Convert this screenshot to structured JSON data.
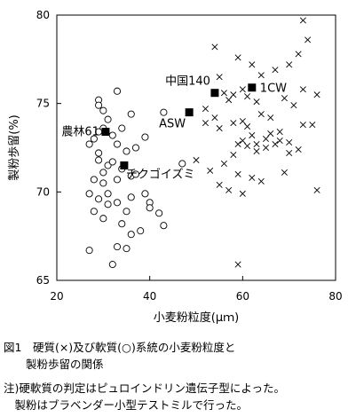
{
  "chart_data": {
    "type": "scatter",
    "xlabel": "小麦粉粒度(μｍ)",
    "ylabel": "製粉歩留(%)",
    "xlim": [
      20,
      80
    ],
    "ylim": [
      65,
      80
    ],
    "xticks": [
      "20",
      "40",
      "60",
      "80"
    ],
    "yticks": [
      "65",
      "70",
      "75",
      "80"
    ],
    "series": [
      {
        "marker": "x",
        "points": [
          [
            54,
            78.2
          ],
          [
            59,
            77.6
          ],
          [
            62,
            77.2
          ],
          [
            64,
            76.6
          ],
          [
            67,
            76.9
          ],
          [
            70,
            77.2
          ],
          [
            72,
            77.8
          ],
          [
            73,
            79.7
          ],
          [
            74,
            78.6
          ],
          [
            55,
            76.5
          ],
          [
            57,
            75.2
          ],
          [
            58,
            75.5
          ],
          [
            60,
            75.8
          ],
          [
            61,
            75.4
          ],
          [
            63,
            75.1
          ],
          [
            64,
            74.4
          ],
          [
            66,
            74.2
          ],
          [
            69,
            75.3
          ],
          [
            71,
            74.9
          ],
          [
            73,
            75.8
          ],
          [
            76,
            75.5
          ],
          [
            52,
            74.7
          ],
          [
            54,
            74.2
          ],
          [
            55,
            73.6
          ],
          [
            58,
            73.9
          ],
          [
            60,
            74.0
          ],
          [
            62,
            73.2
          ],
          [
            63,
            72.7
          ],
          [
            65,
            73.0
          ],
          [
            68,
            73.4
          ],
          [
            70,
            72.8
          ],
          [
            72,
            72.4
          ],
          [
            75,
            73.8
          ],
          [
            50,
            71.8
          ],
          [
            53,
            71.2
          ],
          [
            56,
            71.6
          ],
          [
            58,
            72.1
          ],
          [
            59,
            72.7
          ],
          [
            60,
            72.9
          ],
          [
            61,
            72.6
          ],
          [
            63,
            72.3
          ],
          [
            65,
            72.5
          ],
          [
            67,
            72.7
          ],
          [
            68,
            72.9
          ],
          [
            70,
            72.2
          ],
          [
            55,
            70.4
          ],
          [
            57,
            70.1
          ],
          [
            59,
            71.0
          ],
          [
            60,
            69.9
          ],
          [
            62,
            70.8
          ],
          [
            64,
            70.6
          ],
          [
            69,
            71.1
          ],
          [
            76,
            70.1
          ],
          [
            59,
            65.9
          ],
          [
            52,
            73.9
          ],
          [
            66,
            73.3
          ],
          [
            73,
            73.8
          ],
          [
            61,
            73.7
          ],
          [
            56,
            75.6
          ]
        ]
      },
      {
        "marker": "o",
        "points": [
          [
            29,
            75.2
          ],
          [
            29,
            74.9
          ],
          [
            30,
            74.6
          ],
          [
            31,
            74.1
          ],
          [
            30,
            73.6
          ],
          [
            29,
            73.4
          ],
          [
            28,
            73.0
          ],
          [
            27,
            72.7
          ],
          [
            29,
            72.2
          ],
          [
            29,
            71.8
          ],
          [
            31,
            71.5
          ],
          [
            30,
            71.1
          ],
          [
            28,
            70.7
          ],
          [
            30,
            70.5
          ],
          [
            27,
            69.9
          ],
          [
            29,
            69.6
          ],
          [
            28,
            68.9
          ],
          [
            30,
            68.5
          ],
          [
            27,
            66.7
          ],
          [
            33,
            75.7
          ],
          [
            36,
            74.4
          ],
          [
            34,
            73.6
          ],
          [
            32,
            73.2
          ],
          [
            33,
            72.7
          ],
          [
            35,
            72.3
          ],
          [
            32,
            71.7
          ],
          [
            34,
            71.3
          ],
          [
            36,
            70.9
          ],
          [
            33,
            70.7
          ],
          [
            31,
            69.9
          ],
          [
            33,
            69.4
          ],
          [
            36,
            69.7
          ],
          [
            35,
            68.9
          ],
          [
            34,
            68.2
          ],
          [
            33,
            66.9
          ],
          [
            35,
            66.8
          ],
          [
            32,
            65.9
          ],
          [
            36,
            67.6
          ],
          [
            38,
            67.8
          ],
          [
            39,
            69.9
          ],
          [
            40,
            69.4
          ],
          [
            37,
            72.5
          ],
          [
            39,
            73.1
          ],
          [
            43,
            74.5
          ],
          [
            42,
            68.8
          ],
          [
            43,
            68.1
          ],
          [
            40,
            69.1
          ],
          [
            47,
            71.6
          ],
          [
            37,
            71.0
          ],
          [
            31,
            69.3
          ]
        ]
      },
      {
        "marker": "filled-square",
        "points": [
          [
            30.5,
            73.4
          ],
          [
            34.5,
            71.5
          ],
          [
            48.5,
            74.5
          ],
          [
            54,
            75.6
          ],
          [
            62,
            75.9
          ]
        ]
      }
    ],
    "annotations": [
      {
        "text": "中国140",
        "x": 54,
        "y": 75.6
      },
      {
        "text": "1CW",
        "x": 62,
        "y": 75.9
      },
      {
        "text": "ASW",
        "x": 48.5,
        "y": 74.5
      },
      {
        "text": "農林61",
        "x": 30.5,
        "y": 73.4
      },
      {
        "text": "チクゴイズミ",
        "x": 34.5,
        "y": 71.5
      }
    ]
  },
  "caption": {
    "figure_line1": "図1　硬質(×)及び軟質(○)系統の小麦粉粒度と",
    "figure_line2": "　　製粉歩留の関係",
    "note_line1": "注)硬軟質の判定はピュロインドリン遺伝子型によった。",
    "note_line2": "　製粉はブラベンダー小型テストミルで行った。"
  }
}
